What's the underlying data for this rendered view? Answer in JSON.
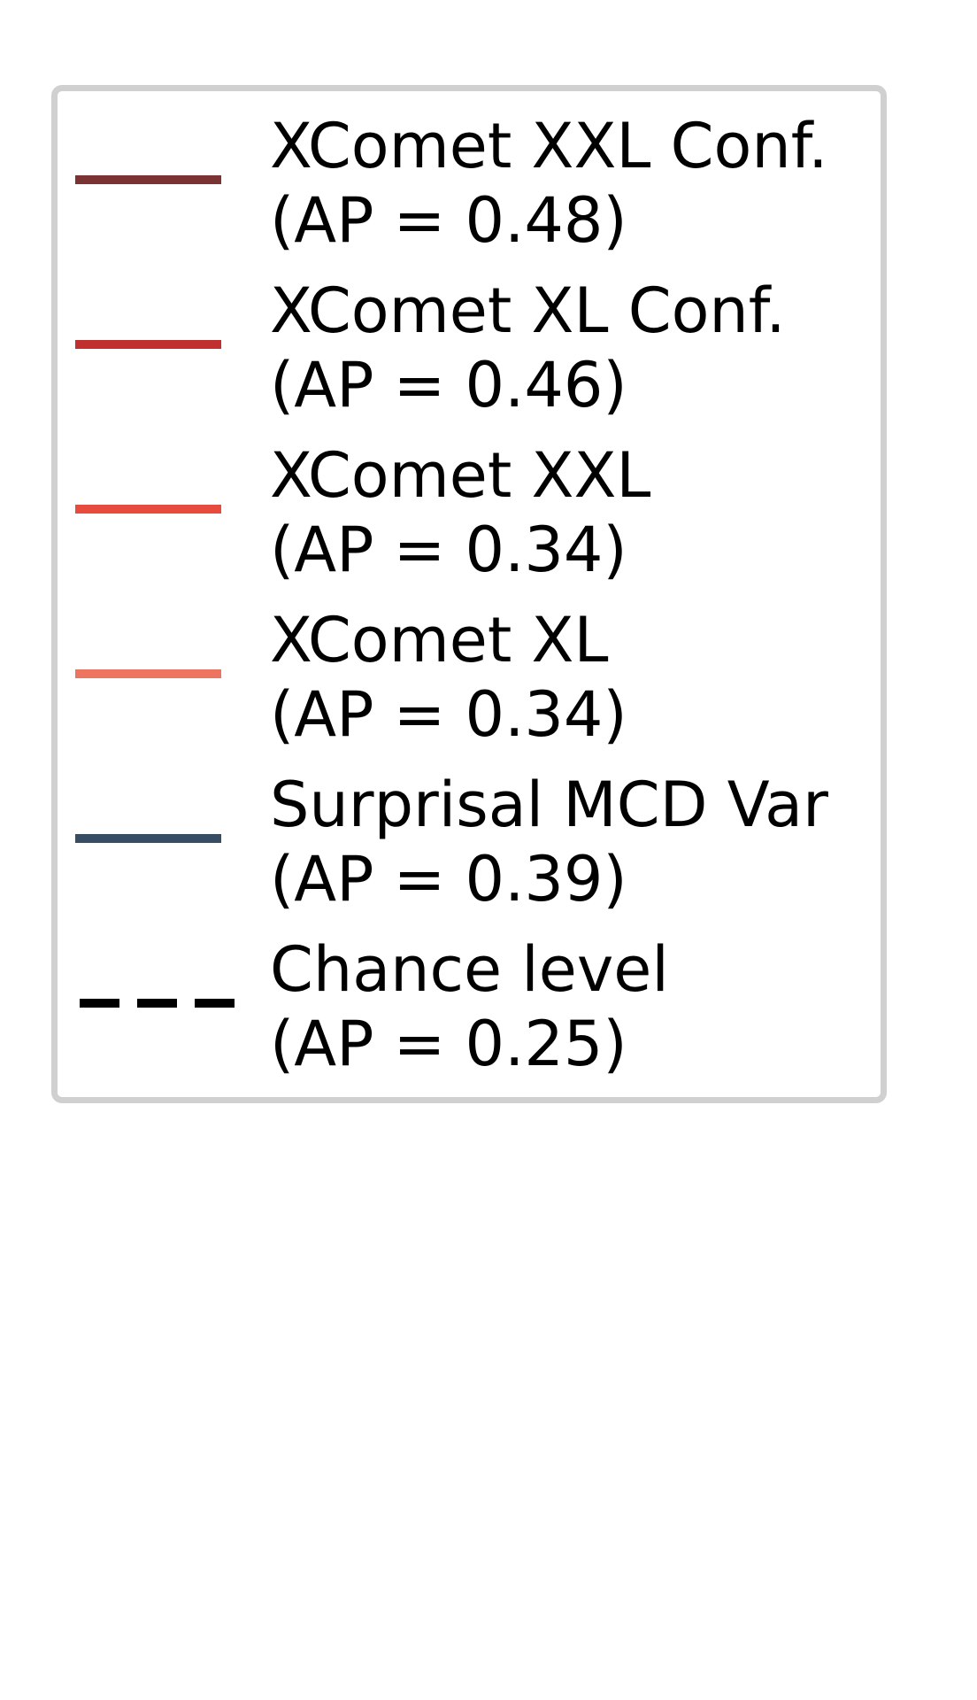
{
  "chart_data": {
    "type": "line",
    "title": "",
    "xlabel": "",
    "ylabel": "",
    "legend_placement": "full-figure",
    "series": [
      {
        "name": "XComet XXL Conf.",
        "annotation": "(AP = 0.48)",
        "ap": 0.48,
        "color": "#7b3233",
        "style": "solid"
      },
      {
        "name": "XComet XL Conf.",
        "annotation": "(AP = 0.46)",
        "ap": 0.46,
        "color": "#c0302e",
        "style": "solid"
      },
      {
        "name": "XComet XXL",
        "annotation": "(AP = 0.34)",
        "ap": 0.34,
        "color": "#e64b3d",
        "style": "solid"
      },
      {
        "name": "XComet XL",
        "annotation": "(AP = 0.34)",
        "ap": 0.34,
        "color": "#ee7462",
        "style": "solid"
      },
      {
        "name": "Surprisal MCD Var",
        "annotation": "(AP = 0.39)",
        "ap": 0.39,
        "color": "#364d63",
        "style": "solid"
      },
      {
        "name": "Chance level",
        "annotation": "(AP = 0.25)",
        "ap": 0.25,
        "color": "#000000",
        "style": "dashed"
      }
    ]
  }
}
